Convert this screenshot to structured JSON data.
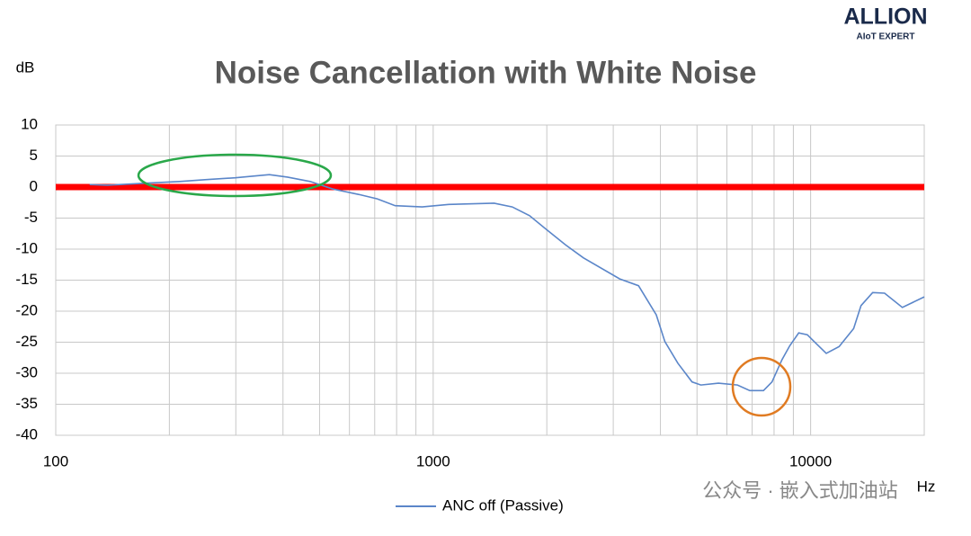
{
  "chart_data": {
    "type": "line",
    "title": "Noise Cancellation with White Noise",
    "y_unit": "dB",
    "x_unit": "Hz",
    "xscale": "log",
    "xlim": [
      100,
      20000
    ],
    "xticks": [
      100,
      1000,
      10000
    ],
    "ylim": [
      -40,
      10
    ],
    "yticks": [
      10,
      5,
      0,
      -5,
      -10,
      -15,
      -20,
      -25,
      -30,
      -35,
      -40
    ],
    "grid": true,
    "minor_grid": true,
    "legend": "bottom",
    "reference_lines": [
      {
        "y": 0,
        "color": "#ff0000"
      }
    ],
    "series": [
      {
        "name": "ANC off (Passive)",
        "color": "#5b86c9",
        "x": [
          123,
          137,
          171,
          213,
          251,
          299,
          339,
          368,
          411,
          472,
          541,
          636,
          711,
          793,
          935,
          1100,
          1450,
          1620,
          1800,
          2010,
          2240,
          2500,
          3120,
          3500,
          3900,
          4110,
          4450,
          4850,
          5120,
          5700,
          6400,
          6900,
          7500,
          7900,
          8400,
          8800,
          9300,
          9800,
          10100,
          11000,
          11900,
          13000,
          13600,
          14600,
          15700,
          17500,
          20000
        ],
        "values": [
          0.4,
          0.3,
          0.6,
          0.9,
          1.2,
          1.5,
          1.8,
          2.0,
          1.6,
          0.9,
          -0.3,
          -1.2,
          -1.9,
          -3.0,
          -3.2,
          -2.8,
          -2.6,
          -3.2,
          -4.6,
          -7.0,
          -9.3,
          -11.4,
          -14.8,
          -15.9,
          -20.6,
          -24.9,
          -28.4,
          -31.4,
          -31.9,
          -31.6,
          -31.9,
          -32.8,
          -32.8,
          -31.4,
          -27.8,
          -25.6,
          -23.5,
          -23.8,
          -24.6,
          -26.8,
          -25.7,
          -22.8,
          -19.1,
          -17.0,
          -17.1,
          -19.4,
          -17.7
        ]
      }
    ]
  },
  "logo": {
    "name": "ALLION",
    "tagline": "AIoT EXPERT"
  },
  "watermark": "公众号 · 嵌入式加油站"
}
